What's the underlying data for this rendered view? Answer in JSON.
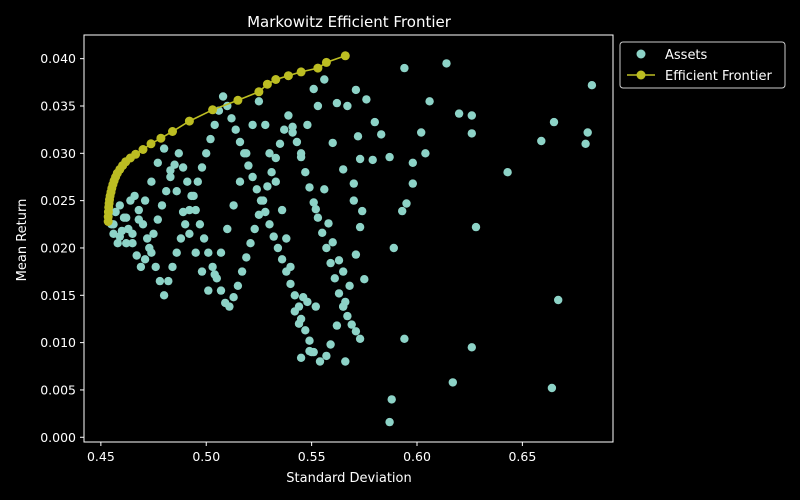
{
  "chart_data": {
    "type": "scatter",
    "title": "Markowitz Efficient Frontier",
    "xlabel": "Standard Deviation",
    "ylabel": "Mean Return",
    "xlim": [
      0.442,
      0.693
    ],
    "ylim": [
      -0.0005,
      0.0425
    ],
    "x_ticks": [
      0.45,
      0.5,
      0.55,
      0.6,
      0.65
    ],
    "x_tick_labels": [
      "0.45",
      "0.50",
      "0.55",
      "0.60",
      "0.65"
    ],
    "y_ticks": [
      0.0,
      0.005,
      0.01,
      0.015,
      0.02,
      0.025,
      0.03,
      0.035,
      0.04
    ],
    "y_tick_labels": [
      "0.000",
      "0.005",
      "0.010",
      "0.015",
      "0.020",
      "0.025",
      "0.030",
      "0.035",
      "0.040"
    ],
    "grid": false,
    "legend_position": "top-right",
    "series": [
      {
        "name": "Assets",
        "color": "#8dd3c7",
        "marker": "circle",
        "line": false,
        "x": [
          0.594,
          0.614,
          0.683,
          0.681,
          0.665,
          0.68,
          0.659,
          0.643,
          0.626,
          0.626,
          0.62,
          0.606,
          0.602,
          0.604,
          0.598,
          0.595,
          0.598,
          0.593,
          0.628,
          0.589,
          0.576,
          0.58,
          0.583,
          0.587,
          0.579,
          0.572,
          0.573,
          0.57,
          0.565,
          0.56,
          0.567,
          0.571,
          0.562,
          0.556,
          0.551,
          0.553,
          0.548,
          0.545,
          0.541,
          0.556,
          0.552,
          0.558,
          0.56,
          0.563,
          0.565,
          0.57,
          0.574,
          0.573,
          0.571,
          0.568,
          0.566,
          0.565,
          0.562,
          0.559,
          0.557,
          0.554,
          0.551,
          0.549,
          0.547,
          0.545,
          0.544,
          0.542,
          0.54,
          0.538,
          0.536,
          0.534,
          0.532,
          0.53,
          0.528,
          0.526,
          0.524,
          0.522,
          0.52,
          0.518,
          0.516,
          0.514,
          0.512,
          0.51,
          0.508,
          0.506,
          0.504,
          0.502,
          0.5,
          0.498,
          0.496,
          0.494,
          0.492,
          0.49,
          0.488,
          0.486,
          0.484,
          0.482,
          0.48,
          0.478,
          0.476,
          0.474,
          0.472,
          0.47,
          0.468,
          0.466,
          0.464,
          0.462,
          0.46,
          0.458,
          0.456,
          0.455,
          0.457,
          0.459,
          0.461,
          0.463,
          0.465,
          0.467,
          0.469,
          0.471,
          0.473,
          0.475,
          0.477,
          0.479,
          0.481,
          0.483,
          0.485,
          0.487,
          0.489,
          0.491,
          0.493,
          0.495,
          0.497,
          0.499,
          0.501,
          0.503,
          0.505,
          0.507,
          0.509,
          0.511,
          0.513,
          0.515,
          0.517,
          0.519,
          0.521,
          0.523,
          0.525,
          0.527,
          0.529,
          0.531,
          0.533,
          0.535,
          0.537,
          0.539,
          0.541,
          0.543,
          0.545,
          0.547,
          0.549,
          0.551,
          0.553,
          0.555,
          0.557,
          0.559,
          0.561,
          0.563,
          0.565,
          0.567,
          0.569,
          0.571,
          0.573,
          0.575,
          0.664,
          0.667,
          0.626,
          0.594,
          0.588,
          0.587,
          0.617,
          0.566,
          0.545,
          0.549,
          0.55,
          0.544,
          0.542,
          0.546,
          0.548,
          0.552,
          0.54,
          0.538,
          0.536,
          0.533,
          0.53,
          0.528,
          0.525,
          0.522,
          0.519,
          0.516,
          0.513,
          0.51,
          0.507,
          0.504,
          0.501,
          0.498,
          0.495,
          0.492,
          0.489,
          0.486,
          0.483,
          0.48,
          0.477,
          0.474,
          0.471,
          0.468,
          0.465,
          0.462,
          0.459,
          0.456
        ],
        "y": [
          0.039,
          0.0395,
          0.0372,
          0.0322,
          0.0333,
          0.031,
          0.0313,
          0.028,
          0.034,
          0.0321,
          0.0342,
          0.0355,
          0.0322,
          0.03,
          0.029,
          0.0247,
          0.0268,
          0.0239,
          0.0222,
          0.02,
          0.0357,
          0.0333,
          0.032,
          0.0296,
          0.0293,
          0.0318,
          0.0294,
          0.0268,
          0.0283,
          0.0311,
          0.035,
          0.0367,
          0.0353,
          0.0378,
          0.0368,
          0.035,
          0.033,
          0.03,
          0.0322,
          0.0262,
          0.0241,
          0.0226,
          0.0206,
          0.0187,
          0.0175,
          0.025,
          0.0239,
          0.0222,
          0.0193,
          0.016,
          0.0143,
          0.0138,
          0.0118,
          0.0098,
          0.0086,
          0.008,
          0.009,
          0.0102,
          0.0113,
          0.0125,
          0.0138,
          0.015,
          0.0162,
          0.0175,
          0.0188,
          0.02,
          0.0212,
          0.0225,
          0.0238,
          0.025,
          0.0262,
          0.0275,
          0.0287,
          0.03,
          0.0312,
          0.0325,
          0.0337,
          0.035,
          0.036,
          0.0345,
          0.033,
          0.0315,
          0.03,
          0.0285,
          0.027,
          0.0255,
          0.024,
          0.0225,
          0.021,
          0.0195,
          0.018,
          0.0165,
          0.015,
          0.0165,
          0.018,
          0.0195,
          0.021,
          0.0225,
          0.024,
          0.0255,
          0.025,
          0.0232,
          0.0218,
          0.0205,
          0.0215,
          0.0225,
          0.0238,
          0.0245,
          0.0232,
          0.022,
          0.0205,
          0.0192,
          0.018,
          0.0188,
          0.02,
          0.0215,
          0.023,
          0.0245,
          0.026,
          0.0275,
          0.0288,
          0.03,
          0.0285,
          0.027,
          0.0255,
          0.024,
          0.0225,
          0.021,
          0.0195,
          0.018,
          0.0168,
          0.0155,
          0.0142,
          0.0138,
          0.0148,
          0.016,
          0.0175,
          0.019,
          0.0205,
          0.022,
          0.0235,
          0.025,
          0.0265,
          0.028,
          0.0295,
          0.031,
          0.0325,
          0.034,
          0.0328,
          0.0312,
          0.0296,
          0.028,
          0.0264,
          0.0248,
          0.0232,
          0.0216,
          0.02,
          0.0184,
          0.0168,
          0.0152,
          0.0138,
          0.0128,
          0.0119,
          0.0112,
          0.0104,
          0.0167,
          0.0052,
          0.0145,
          0.0095,
          0.0104,
          0.004,
          0.0016,
          0.0058,
          0.008,
          0.0084,
          0.0091,
          0.009,
          0.012,
          0.0133,
          0.0148,
          0.0143,
          0.0138,
          0.018,
          0.021,
          0.024,
          0.027,
          0.03,
          0.033,
          0.0355,
          0.033,
          0.03,
          0.027,
          0.0245,
          0.022,
          0.0195,
          0.0172,
          0.0155,
          0.0175,
          0.0195,
          0.0215,
          0.0238,
          0.026,
          0.0282,
          0.0305,
          0.029,
          0.027,
          0.025,
          0.023,
          0.0215,
          0.0205,
          0.0212,
          0.0225
        ]
      },
      {
        "name": "Efficient Frontier",
        "color": "#bcbd22",
        "marker": "circle",
        "line": true,
        "x": [
          0.4535,
          0.4535,
          0.4536,
          0.4537,
          0.4539,
          0.4541,
          0.4544,
          0.4548,
          0.4552,
          0.4557,
          0.4563,
          0.457,
          0.4578,
          0.459,
          0.4603,
          0.4618,
          0.464,
          0.4665,
          0.47,
          0.4738,
          0.4785,
          0.484,
          0.492,
          0.503,
          0.515,
          0.525,
          0.529,
          0.533,
          0.539,
          0.545,
          0.553,
          0.557,
          0.566
        ],
        "y": [
          0.0228,
          0.0233,
          0.0238,
          0.0243,
          0.0247,
          0.0251,
          0.0255,
          0.0259,
          0.0263,
          0.0267,
          0.0271,
          0.0275,
          0.0279,
          0.0283,
          0.0287,
          0.0291,
          0.0295,
          0.0299,
          0.0304,
          0.031,
          0.0316,
          0.0323,
          0.0334,
          0.0346,
          0.0356,
          0.0365,
          0.0373,
          0.0378,
          0.0382,
          0.0386,
          0.039,
          0.0396,
          0.0403
        ]
      }
    ]
  }
}
